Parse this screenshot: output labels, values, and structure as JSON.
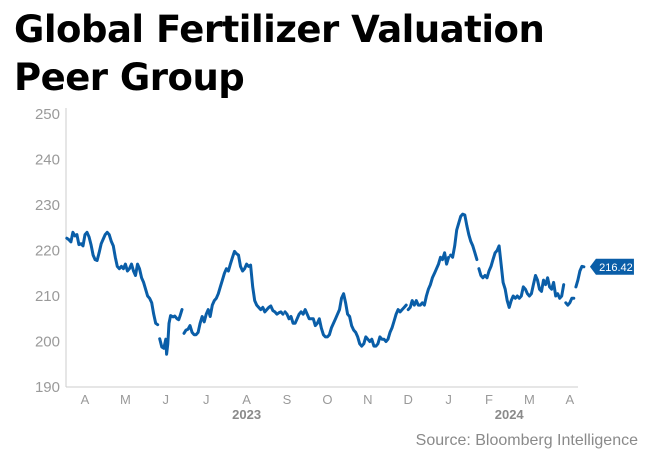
{
  "title_lines": [
    "Global Fertilizer Valuation",
    "Peer Group"
  ],
  "source": "Source: Bloomberg Intelligence",
  "colors": {
    "line": "#0a5ea8",
    "axis_text": "#9a9a9a",
    "year_text": "#8a8a8a",
    "axis_line": "#cccccc"
  },
  "chart_data": {
    "type": "line",
    "title": "Global Fertilizer Valuation Peer Group",
    "xlabel": "",
    "ylabel": "",
    "ylim": [
      190,
      250
    ],
    "yticks": [
      250,
      240,
      230,
      220,
      210,
      200,
      190
    ],
    "grid": false,
    "x_domain": [
      0,
      12.4
    ],
    "month_ticks": [
      {
        "x": 0,
        "label": "A"
      },
      {
        "x": 1,
        "label": "M"
      },
      {
        "x": 2,
        "label": "J"
      },
      {
        "x": 3,
        "label": "J"
      },
      {
        "x": 4,
        "label": "A"
      },
      {
        "x": 5,
        "label": "S"
      },
      {
        "x": 6,
        "label": "O"
      },
      {
        "x": 7,
        "label": "N"
      },
      {
        "x": 8,
        "label": "D"
      },
      {
        "x": 9,
        "label": "J"
      },
      {
        "x": 10,
        "label": "F"
      },
      {
        "x": 11,
        "label": "M"
      },
      {
        "x": 12,
        "label": "A"
      }
    ],
    "year_labels": [
      {
        "x": 4,
        "label": "2023"
      },
      {
        "x": 10.5,
        "label": "2024"
      }
    ],
    "last_value_label": "216.42",
    "series": [
      {
        "name": "",
        "segments": [
          [
            [
              -0.45,
              222.7
            ],
            [
              -0.4,
              222.4
            ],
            [
              -0.35,
              221.9
            ],
            [
              -0.3,
              224.0
            ],
            [
              -0.25,
              223.2
            ],
            [
              -0.2,
              223.5
            ],
            [
              -0.15,
              221.3
            ],
            [
              -0.1,
              221.5
            ],
            [
              -0.05,
              221.0
            ],
            [
              0,
              223.5
            ],
            [
              0.05,
              224.0
            ],
            [
              0.1,
              223.0
            ],
            [
              0.15,
              221.2
            ],
            [
              0.2,
              219.0
            ],
            [
              0.25,
              218.0
            ],
            [
              0.3,
              217.8
            ],
            [
              0.35,
              219.5
            ],
            [
              0.4,
              221.5
            ],
            [
              0.45,
              222.5
            ],
            [
              0.5,
              223.5
            ],
            [
              0.55,
              224.0
            ],
            [
              0.6,
              223.5
            ],
            [
              0.65,
              222.0
            ],
            [
              0.7,
              221.0
            ],
            [
              0.75,
              218.5
            ],
            [
              0.8,
              216.5
            ],
            [
              0.85,
              216.0
            ],
            [
              0.9,
              216.5
            ],
            [
              0.95,
              216.0
            ],
            [
              1.0,
              217.0
            ],
            [
              1.05,
              215.5
            ],
            [
              1.1,
              216.0
            ],
            [
              1.15,
              217.0
            ],
            [
              1.2,
              215.5
            ],
            [
              1.25,
              214.5
            ],
            [
              1.3,
              217.0
            ],
            [
              1.35,
              216.0
            ],
            [
              1.4,
              214.0
            ],
            [
              1.45,
              213.0
            ],
            [
              1.5,
              211.5
            ],
            [
              1.55,
              210.0
            ],
            [
              1.6,
              209.5
            ],
            [
              1.65,
              208.5
            ],
            [
              1.7,
              206.0
            ],
            [
              1.75,
              204.0
            ],
            [
              1.8,
              203.7
            ]
          ],
          [
            [
              1.85,
              200.6
            ],
            [
              1.9,
              198.8
            ],
            [
              1.95,
              198.5
            ],
            [
              2.0,
              200.5
            ],
            [
              2.02,
              197.2
            ],
            [
              2.05,
              199.5
            ],
            [
              2.08,
              204.0
            ],
            [
              2.12,
              205.7
            ],
            [
              2.18,
              205.4
            ],
            [
              2.22,
              205.6
            ],
            [
              2.28,
              205.0
            ],
            [
              2.32,
              204.8
            ],
            [
              2.36,
              205.8
            ],
            [
              2.4,
              207.0
            ]
          ],
          [
            [
              2.45,
              201.8
            ],
            [
              2.5,
              202.5
            ],
            [
              2.55,
              202.7
            ],
            [
              2.6,
              203.5
            ],
            [
              2.65,
              202.0
            ],
            [
              2.7,
              201.5
            ],
            [
              2.75,
              201.5
            ],
            [
              2.8,
              202.0
            ],
            [
              2.85,
              204.0
            ],
            [
              2.9,
              205.5
            ],
            [
              2.95,
              204.3
            ],
            [
              3.0,
              206.0
            ],
            [
              3.05,
              207.0
            ],
            [
              3.1,
              205.5
            ],
            [
              3.15,
              208.0
            ],
            [
              3.2,
              209.0
            ],
            [
              3.25,
              209.5
            ],
            [
              3.3,
              210.5
            ],
            [
              3.35,
              212.0
            ],
            [
              3.4,
              213.5
            ],
            [
              3.45,
              215.0
            ],
            [
              3.5,
              216.0
            ],
            [
              3.55,
              215.5
            ],
            [
              3.6,
              217.0
            ],
            [
              3.65,
              218.5
            ],
            [
              3.7,
              219.8
            ],
            [
              3.75,
              219.3
            ],
            [
              3.8,
              219.0
            ],
            [
              3.85,
              216.5
            ],
            [
              3.9,
              215.5
            ],
            [
              3.95,
              216.0
            ],
            [
              4.0,
              217.0
            ],
            [
              4.05,
              216.5
            ],
            [
              4.1,
              216.8
            ],
            [
              4.15,
              212.0
            ],
            [
              4.2,
              209.0
            ],
            [
              4.25,
              208.0
            ],
            [
              4.3,
              207.5
            ],
            [
              4.35,
              207.0
            ],
            [
              4.4,
              207.5
            ],
            [
              4.45,
              206.5
            ],
            [
              4.5,
              207.0
            ],
            [
              4.55,
              207.5
            ],
            [
              4.6,
              207.8
            ],
            [
              4.65,
              206.8
            ],
            [
              4.7,
              206.5
            ],
            [
              4.75,
              206.0
            ],
            [
              4.8,
              206.3
            ],
            [
              4.85,
              206.5
            ],
            [
              4.9,
              206.0
            ]
          ],
          [
            [
              4.95,
              206.5
            ],
            [
              5.0,
              206.0
            ],
            [
              5.05,
              205.0
            ],
            [
              5.1,
              205.5
            ],
            [
              5.15,
              204.0
            ],
            [
              5.2,
              204.0
            ],
            [
              5.25,
              205.0
            ],
            [
              5.3,
              206.0
            ],
            [
              5.35,
              206.5
            ],
            [
              5.4,
              206.0
            ],
            [
              5.45,
              207.0
            ],
            [
              5.5,
              206.0
            ],
            [
              5.55,
              205.0
            ],
            [
              5.6,
              205.0
            ],
            [
              5.65,
              205.0
            ],
            [
              5.7,
              203.5
            ],
            [
              5.75,
              204.0
            ],
            [
              5.8,
              205.0
            ],
            [
              5.85,
              203.0
            ],
            [
              5.9,
              201.5
            ],
            [
              5.95,
              201.0
            ],
            [
              6.0,
              201.0
            ],
            [
              6.05,
              201.5
            ],
            [
              6.1,
              203.0
            ],
            [
              6.15,
              204.0
            ],
            [
              6.2,
              205.0
            ],
            [
              6.25,
              206.0
            ],
            [
              6.3,
              207.0
            ],
            [
              6.35,
              209.5
            ],
            [
              6.4,
              210.5
            ],
            [
              6.45,
              208.5
            ],
            [
              6.5,
              206.0
            ],
            [
              6.55,
              205.5
            ],
            [
              6.6,
              203.5
            ],
            [
              6.65,
              202.5
            ],
            [
              6.7,
              202.0
            ],
            [
              6.75,
              201.0
            ],
            [
              6.8,
              199.5
            ],
            [
              6.85,
              199.0
            ],
            [
              6.9,
              199.5
            ],
            [
              6.95,
              201.0
            ],
            [
              7.0,
              200.5
            ],
            [
              7.05,
              200.0
            ],
            [
              7.1,
              200.5
            ],
            [
              7.15,
              199.0
            ],
            [
              7.2,
              199.0
            ],
            [
              7.25,
              199.5
            ],
            [
              7.3,
              201.0
            ],
            [
              7.35,
              200.5
            ],
            [
              7.4,
              200.5
            ],
            [
              7.45,
              200.0
            ],
            [
              7.5,
              200.5
            ],
            [
              7.55,
              202.0
            ],
            [
              7.6,
              203.0
            ],
            [
              7.65,
              204.5
            ],
            [
              7.7,
              206.0
            ],
            [
              7.75,
              207.0
            ],
            [
              7.8,
              206.5
            ],
            [
              7.85,
              207.0
            ],
            [
              7.9,
              207.5
            ],
            [
              7.95,
              208.0
            ]
          ],
          [
            [
              8.0,
              207.0
            ],
            [
              8.05,
              207.5
            ],
            [
              8.1,
              209.0
            ],
            [
              8.15,
              208.0
            ],
            [
              8.2,
              209.0
            ],
            [
              8.25,
              208.0
            ],
            [
              8.3,
              208.0
            ],
            [
              8.35,
              208.5
            ],
            [
              8.4,
              208.0
            ],
            [
              8.45,
              210.0
            ],
            [
              8.5,
              211.5
            ],
            [
              8.55,
              212.5
            ],
            [
              8.6,
              214.0
            ],
            [
              8.65,
              215.0
            ],
            [
              8.7,
              216.0
            ],
            [
              8.75,
              217.0
            ],
            [
              8.8,
              218.5
            ],
            [
              8.85,
              218.0
            ],
            [
              8.9,
              219.5
            ],
            [
              8.95,
              217.0
            ],
            [
              9.0,
              218.5
            ]
          ],
          [
            [
              9.05,
              219.0
            ],
            [
              9.1,
              218.5
            ],
            [
              9.15,
              221.0
            ],
            [
              9.2,
              224.5
            ],
            [
              9.25,
              226.0
            ],
            [
              9.3,
              227.5
            ],
            [
              9.35,
              228.0
            ],
            [
              9.4,
              227.8
            ],
            [
              9.45,
              225.5
            ],
            [
              9.5,
              223.5
            ],
            [
              9.55,
              222.0
            ],
            [
              9.6,
              221.0
            ],
            [
              9.65,
              219.5
            ],
            [
              9.7,
              218.0
            ]
          ],
          [
            [
              9.75,
              216.0
            ],
            [
              9.8,
              214.5
            ],
            [
              9.85,
              214.0
            ],
            [
              9.9,
              214.5
            ],
            [
              9.95,
              214.0
            ],
            [
              10.0,
              215.5
            ],
            [
              10.05,
              216.5
            ],
            [
              10.1,
              218.0
            ],
            [
              10.15,
              219.5
            ],
            [
              10.2,
              220.0
            ],
            [
              10.25,
              221.0
            ],
            [
              10.3,
              217.0
            ],
            [
              10.35,
              213.0
            ],
            [
              10.4,
              211.5
            ],
            [
              10.45,
              209.0
            ],
            [
              10.5,
              207.5
            ],
            [
              10.55,
              209.0
            ],
            [
              10.6,
              210.0
            ],
            [
              10.65,
              209.5
            ],
            [
              10.7,
              210.0
            ],
            [
              10.75,
              209.5
            ],
            [
              10.8,
              210.0
            ],
            [
              10.85,
              212.0
            ],
            [
              10.9,
              211.5
            ],
            [
              10.95,
              210.5
            ],
            [
              11.0,
              210.0
            ],
            [
              11.05,
              210.5
            ],
            [
              11.1,
              212.5
            ],
            [
              11.15,
              214.5
            ],
            [
              11.2,
              213.5
            ],
            [
              11.25,
              211.5
            ],
            [
              11.3,
              211.0
            ],
            [
              11.35,
              213.5
            ],
            [
              11.4,
              212.5
            ],
            [
              11.45,
              214.0
            ],
            [
              11.5,
              212.0
            ],
            [
              11.55,
              211.5
            ],
            [
              11.6,
              213.0
            ],
            [
              11.65,
              210.0
            ],
            [
              11.7,
              210.5
            ],
            [
              11.75,
              209.5
            ],
            [
              11.8,
              210.0
            ],
            [
              11.85,
              212.5
            ]
          ],
          [
            [
              11.9,
              208.5
            ],
            [
              11.95,
              208.0
            ],
            [
              12.0,
              208.5
            ],
            [
              12.05,
              209.5
            ],
            [
              12.1,
              209.5
            ]
          ],
          [
            [
              12.15,
              212.0
            ],
            [
              12.2,
              213.5
            ],
            [
              12.25,
              215.5
            ],
            [
              12.3,
              216.5
            ],
            [
              12.35,
              216.42
            ]
          ]
        ]
      }
    ]
  }
}
